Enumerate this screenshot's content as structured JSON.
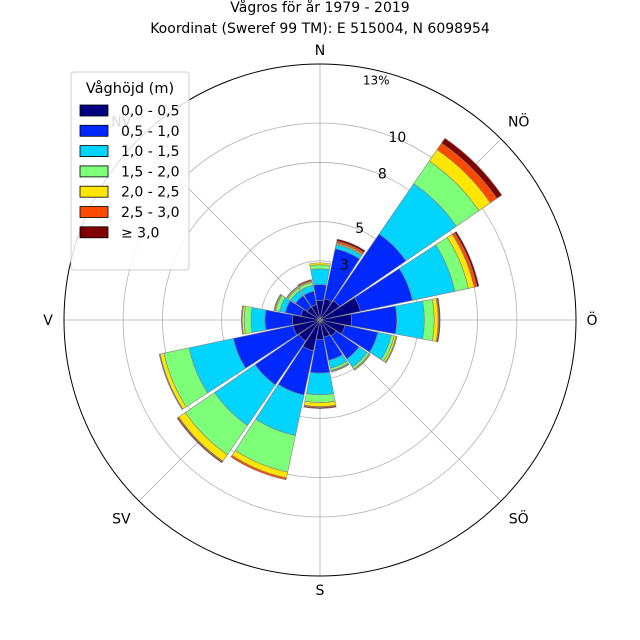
{
  "chart_data": {
    "type": "windrose",
    "title": "Vågros för år 1979 - 2019",
    "subtitle": "Koordinat (Sweref 99 TM): E 515004, N 6098954",
    "direction_labels": [
      "N",
      "NÖ",
      "Ö",
      "SÖ",
      "S",
      "SV",
      "V",
      "NV"
    ],
    "radial_ticks": [
      "3",
      "5",
      "8",
      "10"
    ],
    "radial_tick_values": [
      3,
      5,
      8,
      10
    ],
    "outer_label": "13%",
    "rmax": 13,
    "legend": {
      "title": "Våghöjd (m)",
      "placement": "top-left",
      "entries": [
        "0,0 - 0,5",
        "0,5 - 1,0",
        "1,0 - 1,5",
        "1,5 - 2,0",
        "2,0 - 2,5",
        "2,5 - 3,0",
        "≥ 3,0"
      ]
    },
    "colors": [
      "#000080",
      "#0029ff",
      "#00d4ff",
      "#7dff7a",
      "#ffe600",
      "#ff4a00",
      "#800000"
    ],
    "sectors_deg": [
      0,
      22.5,
      45,
      67.5,
      90,
      112.5,
      135,
      157.5,
      180,
      202.5,
      225,
      247.5,
      270,
      292.5,
      315,
      337.5
    ],
    "cumulative": [
      [
        1.0,
        1.8,
        2.6,
        2.8,
        2.9,
        2.9,
        2.9
      ],
      [
        1.1,
        3.7,
        3.9,
        3.95,
        4.0,
        4.1,
        4.2
      ],
      [
        1.2,
        5.3,
        8.4,
        9.8,
        10.5,
        10.9,
        11.2
      ],
      [
        2.1,
        4.8,
        7.0,
        7.7,
        8.0,
        8.15,
        8.25
      ],
      [
        1.6,
        3.9,
        5.3,
        5.8,
        6.0,
        6.05,
        6.1
      ],
      [
        1.3,
        3.0,
        3.7,
        3.85,
        3.95,
        3.98,
        4.0
      ],
      [
        1.0,
        2.4,
        2.9,
        3.02,
        3.07,
        3.1,
        3.1
      ],
      [
        0.9,
        2.1,
        2.5,
        2.62,
        2.66,
        2.68,
        2.7
      ],
      [
        1.0,
        2.7,
        3.8,
        4.2,
        4.4,
        4.45,
        4.5
      ],
      [
        1.6,
        3.9,
        6.0,
        7.9,
        8.2,
        8.3,
        8.3
      ],
      [
        1.3,
        4.0,
        6.5,
        8.3,
        8.7,
        8.75,
        8.8
      ],
      [
        1.4,
        4.5,
        6.8,
        8.1,
        8.3,
        8.32,
        8.35
      ],
      [
        1.4,
        2.8,
        3.5,
        3.85,
        3.95,
        3.97,
        4.0
      ],
      [
        1.0,
        1.8,
        2.1,
        2.3,
        2.35,
        2.38,
        2.4
      ],
      [
        0.8,
        1.5,
        1.8,
        1.95,
        2.0,
        2.02,
        2.05
      ],
      [
        0.8,
        1.5,
        1.8,
        1.95,
        2.0,
        2.05,
        2.1
      ]
    ]
  }
}
